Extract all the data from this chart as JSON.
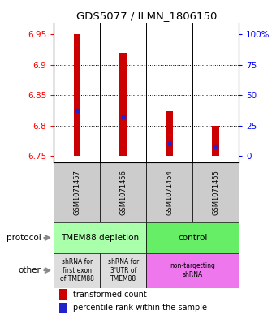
{
  "title": "GDS5077 / ILMN_1806150",
  "samples": [
    "GSM1071457",
    "GSM1071456",
    "GSM1071454",
    "GSM1071455"
  ],
  "bar_bottoms": [
    6.75,
    6.75,
    6.75,
    6.75
  ],
  "bar_tops": [
    6.95,
    6.92,
    6.824,
    6.8
  ],
  "blue_markers": [
    6.825,
    6.815,
    6.77,
    6.765
  ],
  "ylim": [
    6.74,
    6.97
  ],
  "yticks": [
    6.75,
    6.8,
    6.85,
    6.9,
    6.95
  ],
  "ytick_labels": [
    "6.75",
    "6.8",
    "6.85",
    "6.9",
    "6.95"
  ],
  "right_yticks": [
    6.75,
    6.8,
    6.85,
    6.9,
    6.95
  ],
  "right_ytick_labels": [
    "0",
    "25",
    "50",
    "75",
    "100%"
  ],
  "bar_color": "#cc0000",
  "blue_color": "#2222cc",
  "grid_yticks": [
    6.8,
    6.85,
    6.9
  ],
  "bar_width": 0.15,
  "protocol_rects": [
    {
      "start": 0,
      "end": 2,
      "color": "#aaffaa",
      "label": "TMEM88 depletion"
    },
    {
      "start": 2,
      "end": 4,
      "color": "#66ee66",
      "label": "control"
    }
  ],
  "other_rects": [
    {
      "start": 0,
      "end": 1,
      "color": "#dddddd",
      "label": "shRNA for\nfirst exon\nof TMEM88"
    },
    {
      "start": 1,
      "end": 2,
      "color": "#dddddd",
      "label": "shRNA for\n3'UTR of\nTMEM88"
    },
    {
      "start": 2,
      "end": 4,
      "color": "#ee77ee",
      "label": "non-targetting\nshRNA"
    }
  ],
  "legend_red": "transformed count",
  "legend_blue": "percentile rank within the sample",
  "label_protocol": "protocol",
  "label_other": "other",
  "bg_color": "#cccccc",
  "n_cols": 4
}
